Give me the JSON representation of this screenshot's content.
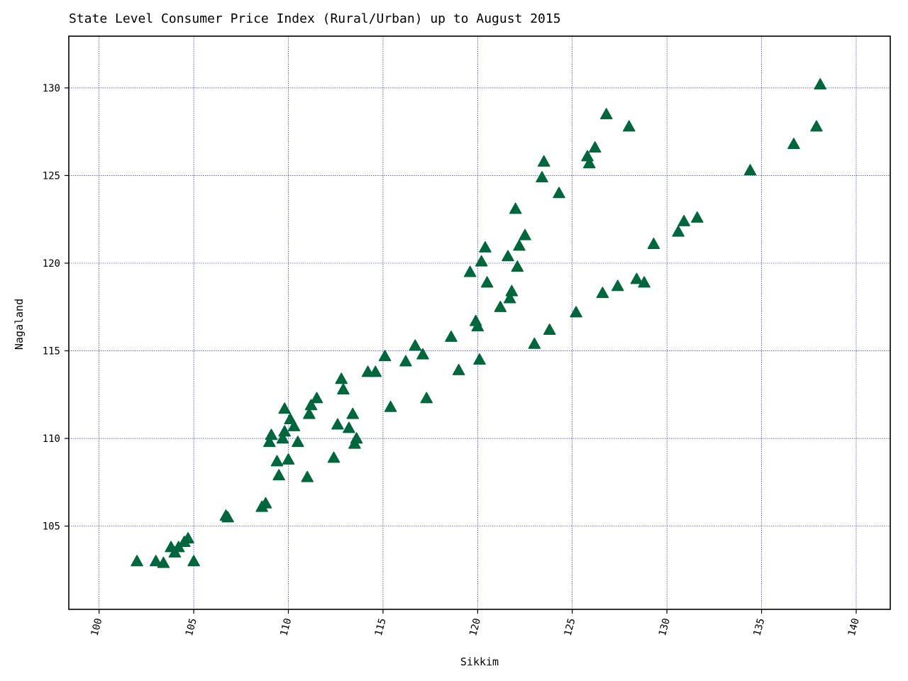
{
  "chart_data": {
    "type": "scatter",
    "title": "State Level Consumer Price Index (Rural/Urban) up to August 2015",
    "xlabel": "Sikkim",
    "ylabel": "Nagaland",
    "xlim": [
      98.4,
      141.8
    ],
    "ylim": [
      100.25,
      132.95
    ],
    "xticks": [
      100,
      105,
      110,
      115,
      120,
      125,
      130,
      135,
      140
    ],
    "yticks": [
      105,
      110,
      115,
      120,
      125,
      130
    ],
    "grid": true,
    "marker": "triangle-up",
    "marker_color": "#00663b",
    "grid_color": "#0000cc",
    "x": [
      102.0,
      103.0,
      103.4,
      103.8,
      104.0,
      104.2,
      104.5,
      104.7,
      105.0,
      106.7,
      106.8,
      108.6,
      108.8,
      109.0,
      109.1,
      109.4,
      109.5,
      109.7,
      109.8,
      109.8,
      110.0,
      110.1,
      110.3,
      110.5,
      111.0,
      111.1,
      111.2,
      111.5,
      112.4,
      112.6,
      112.8,
      112.9,
      113.2,
      113.4,
      113.5,
      113.6,
      114.2,
      114.6,
      115.1,
      115.4,
      116.2,
      116.7,
      117.1,
      117.3,
      118.6,
      119.0,
      119.6,
      119.9,
      120.0,
      120.1,
      120.2,
      120.4,
      120.5,
      121.2,
      121.6,
      121.7,
      121.8,
      122.0,
      122.1,
      122.2,
      122.5,
      123.0,
      123.4,
      123.5,
      123.8,
      124.3,
      125.2,
      125.8,
      125.9,
      126.2,
      126.6,
      126.8,
      127.4,
      128.0,
      128.4,
      128.8,
      129.3,
      130.6,
      130.9,
      131.6,
      134.4,
      136.7,
      137.9,
      138.1
    ],
    "y": [
      103.0,
      103.0,
      102.9,
      103.8,
      103.5,
      103.8,
      104.1,
      104.3,
      103.0,
      105.6,
      105.5,
      106.1,
      106.3,
      109.8,
      110.2,
      108.7,
      107.9,
      110.0,
      110.4,
      111.7,
      108.8,
      111.1,
      110.7,
      109.8,
      107.8,
      111.4,
      111.9,
      112.3,
      108.9,
      110.8,
      113.4,
      112.8,
      110.6,
      111.4,
      109.7,
      110.0,
      113.8,
      113.8,
      114.7,
      111.8,
      114.4,
      115.3,
      114.8,
      112.3,
      115.8,
      113.9,
      119.5,
      116.7,
      116.4,
      114.5,
      120.1,
      120.9,
      118.9,
      117.5,
      120.4,
      118.0,
      118.4,
      123.1,
      119.8,
      121.0,
      121.6,
      115.4,
      124.9,
      125.8,
      116.2,
      124.0,
      117.2,
      126.1,
      125.7,
      126.6,
      118.3,
      128.5,
      118.7,
      127.8,
      119.1,
      118.9,
      121.1,
      121.8,
      122.4,
      122.6,
      125.3,
      126.8,
      127.8,
      130.2
    ]
  }
}
